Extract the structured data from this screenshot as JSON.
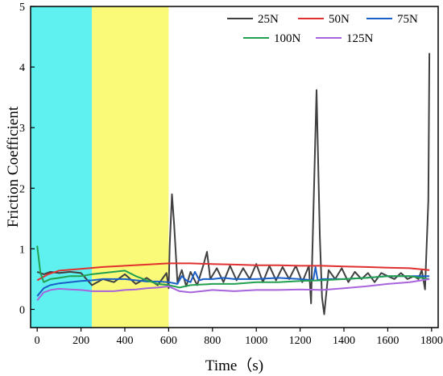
{
  "chart_data": {
    "type": "line",
    "xlabel": "Time（s)",
    "ylabel": "Friction Coefficient",
    "xlim": [
      -30,
      1830
    ],
    "ylim": [
      -0.3,
      5
    ],
    "xticks": [
      0,
      200,
      400,
      600,
      800,
      1000,
      1200,
      1400,
      1600,
      1800
    ],
    "yticks": [
      0,
      1,
      2,
      3,
      4,
      5
    ],
    "grid": false,
    "legend_position": "top-right",
    "shaded_regions": [
      {
        "x0": -30,
        "x1": 250,
        "color": "#5ff0f0"
      },
      {
        "x0": 250,
        "x1": 600,
        "color": "#fafa78"
      }
    ],
    "series": [
      {
        "name": "25N",
        "color": "#404040",
        "x": [
          0,
          30,
          60,
          100,
          150,
          200,
          250,
          300,
          350,
          400,
          450,
          500,
          550,
          590,
          600,
          605,
          615,
          625,
          640,
          660,
          680,
          700,
          730,
          760,
          775,
          790,
          820,
          850,
          880,
          910,
          940,
          970,
          1000,
          1030,
          1060,
          1090,
          1120,
          1150,
          1180,
          1210,
          1240,
          1250,
          1260,
          1275,
          1290,
          1300,
          1310,
          1330,
          1360,
          1390,
          1420,
          1450,
          1480,
          1510,
          1540,
          1570,
          1600,
          1630,
          1660,
          1690,
          1720,
          1740,
          1755,
          1770,
          1785,
          1790
        ],
        "values": [
          0.62,
          0.58,
          0.62,
          0.6,
          0.62,
          0.6,
          0.4,
          0.5,
          0.45,
          0.58,
          0.42,
          0.52,
          0.4,
          0.6,
          0.35,
          1.05,
          1.9,
          1.4,
          0.45,
          0.65,
          0.38,
          0.62,
          0.4,
          0.75,
          0.95,
          0.5,
          0.68,
          0.45,
          0.72,
          0.48,
          0.68,
          0.5,
          0.75,
          0.45,
          0.72,
          0.48,
          0.7,
          0.5,
          0.72,
          0.45,
          0.72,
          0.1,
          1.5,
          3.62,
          1.2,
          0.2,
          -0.08,
          0.65,
          0.5,
          0.68,
          0.45,
          0.62,
          0.5,
          0.6,
          0.45,
          0.6,
          0.55,
          0.5,
          0.6,
          0.5,
          0.55,
          0.5,
          0.65,
          0.33,
          1.8,
          4.23
        ]
      },
      {
        "name": "50N",
        "color": "#e03030",
        "x": [
          0,
          50,
          100,
          200,
          300,
          400,
          500,
          600,
          700,
          800,
          900,
          1000,
          1100,
          1200,
          1300,
          1400,
          1500,
          1600,
          1700,
          1790
        ],
        "values": [
          0.48,
          0.58,
          0.64,
          0.67,
          0.7,
          0.72,
          0.74,
          0.76,
          0.76,
          0.75,
          0.74,
          0.73,
          0.73,
          0.72,
          0.72,
          0.71,
          0.7,
          0.69,
          0.68,
          0.65
        ]
      },
      {
        "name": "75N",
        "color": "#1a5fc8",
        "x": [
          0,
          30,
          60,
          100,
          150,
          200,
          250,
          300,
          350,
          400,
          450,
          500,
          550,
          600,
          640,
          660,
          680,
          700,
          720,
          740,
          760,
          800,
          850,
          900,
          1000,
          1100,
          1200,
          1260,
          1270,
          1280,
          1300,
          1400,
          1500,
          1600,
          1700,
          1790
        ],
        "values": [
          0.22,
          0.35,
          0.4,
          0.43,
          0.45,
          0.47,
          0.48,
          0.5,
          0.5,
          0.5,
          0.48,
          0.46,
          0.46,
          0.45,
          0.42,
          0.55,
          0.48,
          0.45,
          0.62,
          0.48,
          0.5,
          0.5,
          0.52,
          0.5,
          0.5,
          0.52,
          0.5,
          0.48,
          0.7,
          0.48,
          0.5,
          0.5,
          0.52,
          0.55,
          0.55,
          0.55
        ]
      },
      {
        "name": "100N",
        "color": "#22a050",
        "x": [
          0,
          15,
          30,
          60,
          100,
          150,
          200,
          250,
          300,
          350,
          400,
          450,
          500,
          550,
          600,
          650,
          700,
          800,
          900,
          1000,
          1100,
          1200,
          1300,
          1400,
          1500,
          1600,
          1700,
          1790
        ],
        "values": [
          1.05,
          0.6,
          0.45,
          0.5,
          0.52,
          0.55,
          0.55,
          0.58,
          0.6,
          0.62,
          0.64,
          0.55,
          0.48,
          0.42,
          0.4,
          0.36,
          0.4,
          0.42,
          0.42,
          0.45,
          0.45,
          0.47,
          0.48,
          0.5,
          0.52,
          0.55,
          0.55,
          0.5
        ]
      },
      {
        "name": "125N",
        "color": "#a864dc",
        "x": [
          0,
          30,
          60,
          100,
          150,
          200,
          250,
          300,
          350,
          400,
          450,
          500,
          550,
          600,
          650,
          700,
          800,
          900,
          1000,
          1100,
          1200,
          1300,
          1400,
          1500,
          1600,
          1700,
          1790
        ],
        "values": [
          0.15,
          0.28,
          0.32,
          0.34,
          0.33,
          0.32,
          0.3,
          0.3,
          0.3,
          0.32,
          0.33,
          0.35,
          0.36,
          0.38,
          0.3,
          0.28,
          0.32,
          0.3,
          0.32,
          0.32,
          0.33,
          0.32,
          0.35,
          0.38,
          0.42,
          0.45,
          0.5
        ]
      }
    ]
  }
}
